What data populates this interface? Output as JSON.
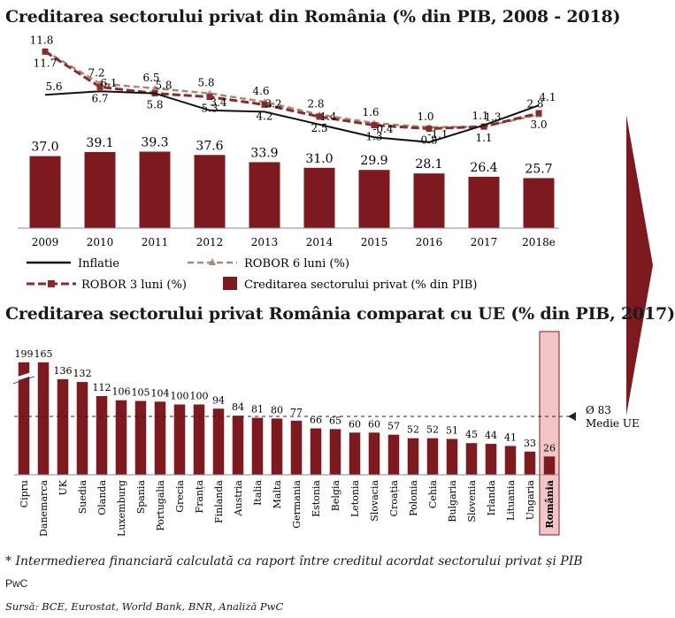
{
  "colors": {
    "bar": "#7d1a1f",
    "line": "#111111",
    "robor3": "#8b2a2a",
    "robor6": "#a88a7a",
    "romania_highlight": "#f2c6c6",
    "arrow": "#7d1a1f"
  },
  "chart_data": [
    {
      "type": "bar+line",
      "title": "Creditarea sectorului privat din România (% din PIB, 2008 - 2018)",
      "categories": [
        "2009",
        "2010",
        "2011",
        "2012",
        "2013",
        "2014",
        "2015",
        "2016",
        "2017",
        "2018e"
      ],
      "series": [
        {
          "name": "Creditarea sectorului privat (% din PIB)",
          "type": "bar",
          "values": [
            37.0,
            39.1,
            39.3,
            37.6,
            33.9,
            31.0,
            29.9,
            28.1,
            26.4,
            25.7
          ],
          "labels": [
            "37.0",
            "39.1",
            "39.3",
            "37.6",
            "33.9",
            "31.0",
            "29.9",
            "28.1",
            "26.4",
            "25.7"
          ]
        },
        {
          "name": "Inflatie",
          "type": "line",
          "values": [
            5.6,
            6.1,
            5.8,
            3.4,
            3.2,
            1.4,
            -0.4,
            -1.1,
            1.3,
            4.1
          ],
          "labels": [
            "5.6",
            "6.1",
            "5.8",
            "3.4",
            "3.2",
            "1.4",
            "-0.4",
            "-1.1",
            "1.3",
            "4.1"
          ]
        },
        {
          "name": "ROBOR 3 luni (%)",
          "type": "line-dashed",
          "values": [
            11.7,
            6.7,
            5.8,
            5.3,
            4.2,
            2.5,
            1.3,
            0.8,
            1.1,
            3.0
          ],
          "labels": [
            "11.7",
            "6.7",
            "5.8",
            "5.3",
            "4.2",
            "2.5",
            "1.3",
            "0.8",
            "1.1",
            "3.0"
          ]
        },
        {
          "name": "ROBOR 6 luni (%)",
          "type": "line-dashed",
          "values": [
            11.8,
            7.2,
            6.5,
            5.8,
            4.6,
            2.8,
            1.6,
            1.0,
            1.1,
            2.8
          ],
          "labels": [
            "11.8",
            "7.2",
            "6.5",
            "5.8",
            "4.6",
            "2.8",
            "1.6",
            "1.0",
            "1.1",
            "2.8"
          ]
        }
      ],
      "legend": [
        "Inflatie",
        "ROBOR 6 luni (%)",
        "ROBOR 3 luni (%)",
        "Creditarea sectorului privat (% din PIB)"
      ],
      "legend_position": "bottom"
    },
    {
      "type": "bar",
      "title": "Creditarea sectorului privat România comparat cu UE (% din PIB, 2017)",
      "categories": [
        "Cipru",
        "Danemarca",
        "UK",
        "Suedia",
        "Olanda",
        "Luxemburg",
        "Spania",
        "Portugalia",
        "Grecia",
        "Franța",
        "Finlanda",
        "Austria",
        "Italia",
        "Malta",
        "Germania",
        "Estonia",
        "Belgia",
        "Letonia",
        "Slovacia",
        "Croația",
        "Polonia",
        "Cehia",
        "Bulgaria",
        "Slovenia",
        "Irlanda",
        "Lituania",
        "Ungaria",
        "România"
      ],
      "values": [
        199,
        165,
        136,
        132,
        112,
        106,
        105,
        104,
        100,
        100,
        94,
        84,
        81,
        80,
        77,
        66,
        65,
        60,
        60,
        57,
        52,
        52,
        51,
        45,
        44,
        41,
        33,
        26
      ],
      "labels": [
        "199",
        "165",
        "136",
        "132",
        "112",
        "106",
        "105",
        "104",
        "100",
        "100",
        "94",
        "84",
        "81",
        "80",
        "77",
        "66",
        "65",
        "60",
        "60",
        "57",
        "52",
        "52",
        "51",
        "45",
        "44",
        "41",
        "33",
        "26"
      ],
      "highlight": "România",
      "reference_line": {
        "value": 83,
        "label_value": "Ø 83",
        "label_text": "Medie UE"
      },
      "axis_break_on": "Cipru"
    }
  ],
  "footer": {
    "note": "* Intermedierea financiară calculată ca raport între creditul acordat sectorului privat și PIB",
    "brand": "PwC",
    "source": "Sursă: BCE, Eurostat, World Bank, BNR, Analiză PwC"
  }
}
